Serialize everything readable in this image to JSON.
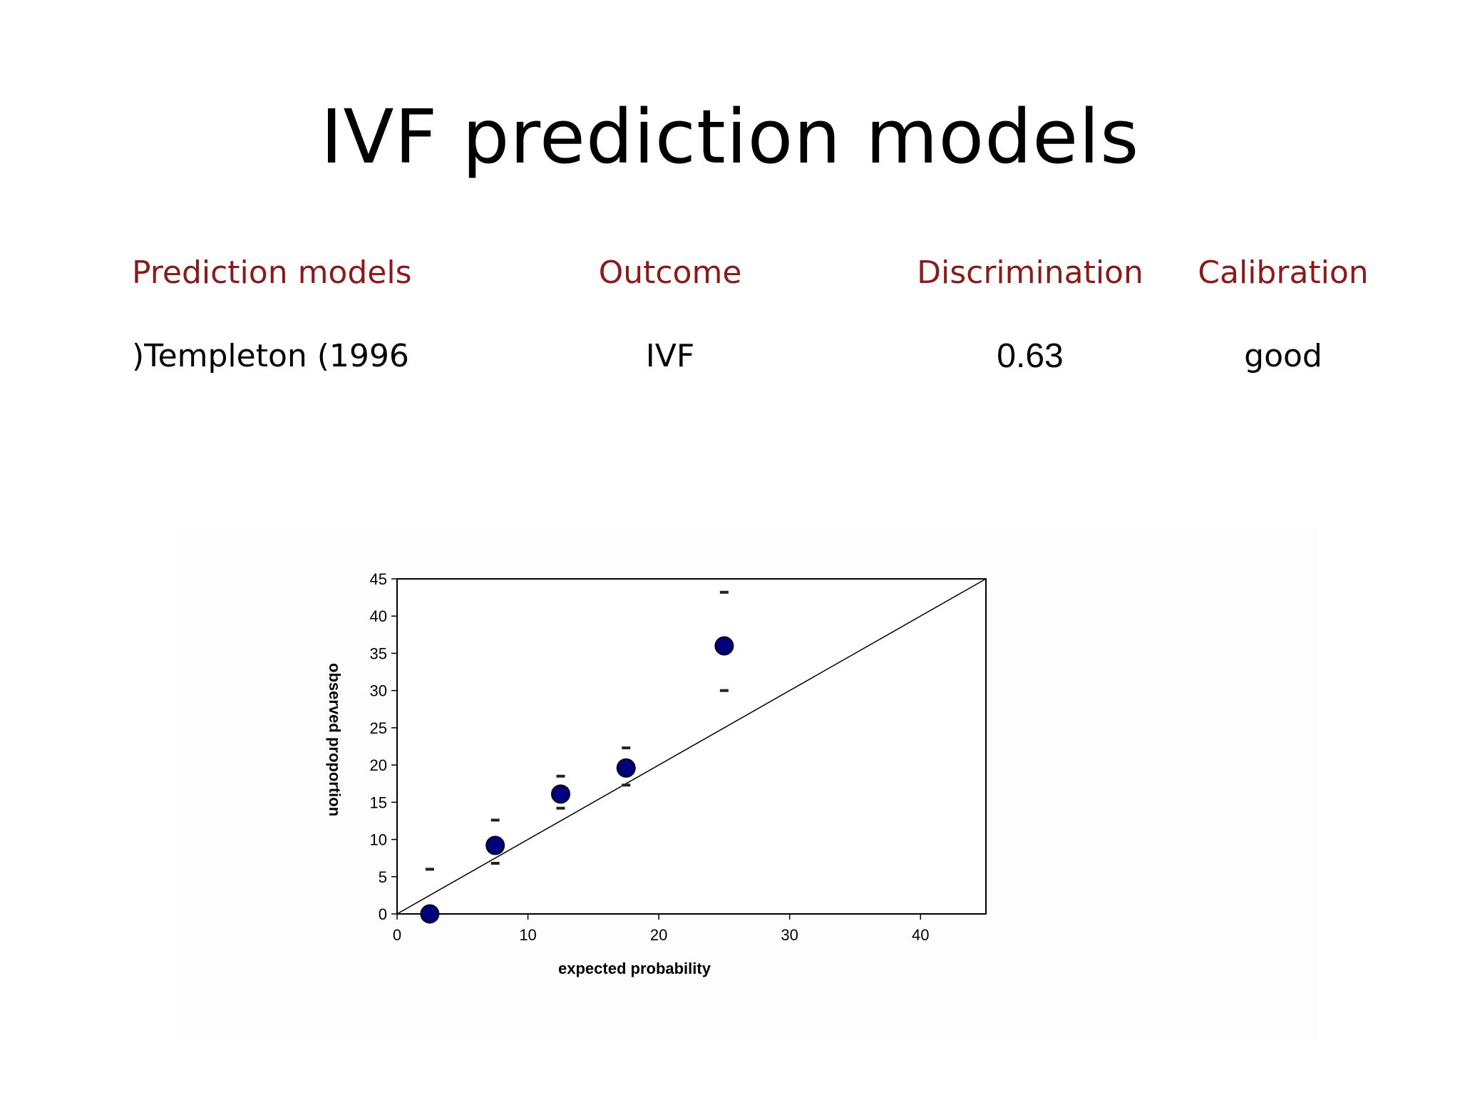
{
  "title": "IVF prediction models",
  "table": {
    "headers": [
      "Prediction models",
      "Outcome",
      "Discrimination",
      "Calibration"
    ],
    "rows": [
      [
        ")Templeton (1996",
        "IVF",
        "0.63",
        "good"
      ]
    ]
  },
  "colors": {
    "header_text": "#8b1a1a",
    "marker": "#000080"
  },
  "chart_data": {
    "type": "scatter",
    "xlabel": "expected probability",
    "ylabel": "observed proportion",
    "xlim": [
      0,
      45
    ],
    "ylim": [
      0,
      45
    ],
    "x_ticks": [
      0,
      10,
      20,
      30,
      40
    ],
    "y_ticks": [
      0,
      5,
      10,
      15,
      20,
      25,
      30,
      35,
      40,
      45
    ],
    "reference_line": {
      "from": [
        0,
        0
      ],
      "to": [
        45,
        45
      ]
    },
    "points": [
      {
        "x": 2.5,
        "y": 0,
        "lower": null,
        "upper": 6
      },
      {
        "x": 7.5,
        "y": 9.2,
        "lower": 6.8,
        "upper": 12.6
      },
      {
        "x": 12.5,
        "y": 16.1,
        "lower": 14.2,
        "upper": 18.5
      },
      {
        "x": 17.5,
        "y": 19.6,
        "lower": 17.3,
        "upper": 22.3
      },
      {
        "x": 25,
        "y": 36,
        "lower": 30,
        "upper": 43.2
      }
    ],
    "grid": false,
    "legend": "none"
  }
}
